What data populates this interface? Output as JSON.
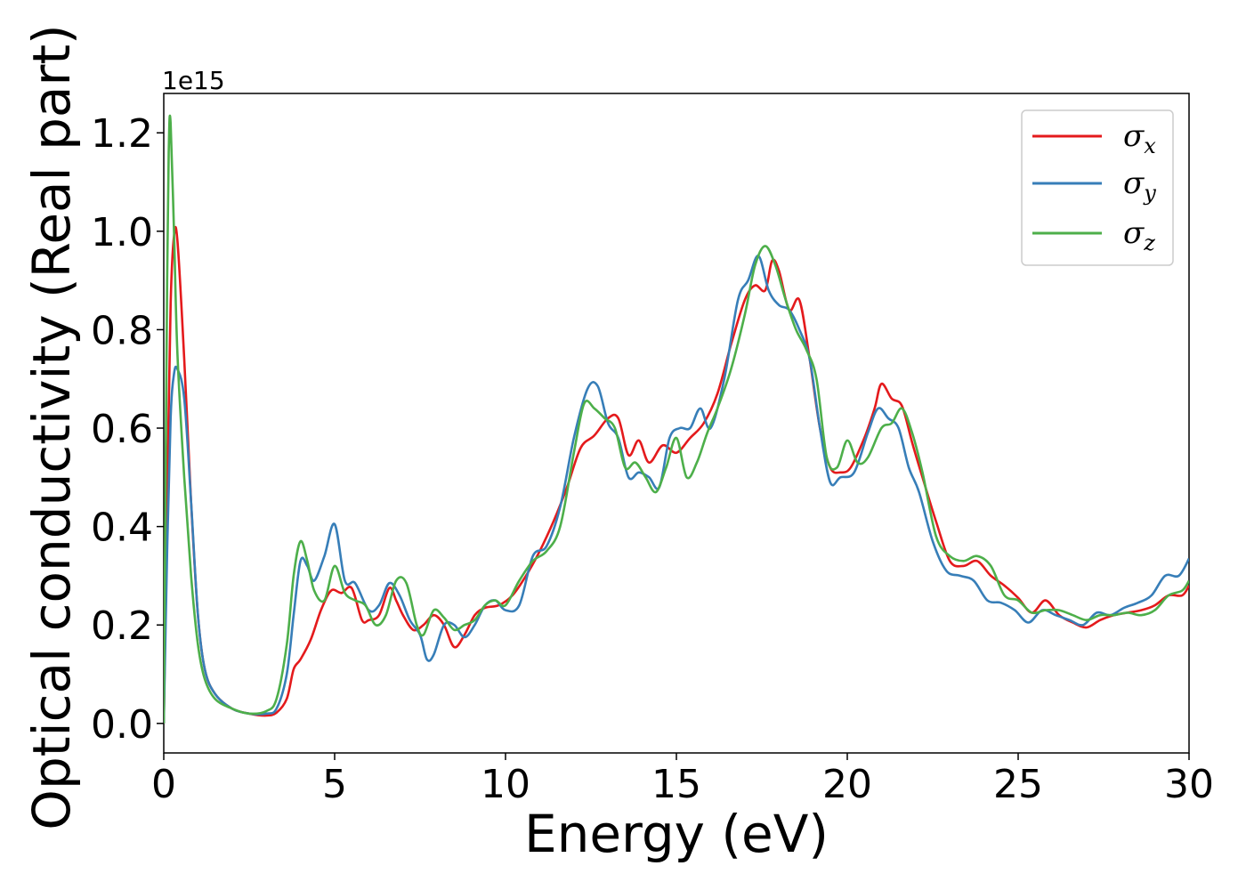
{
  "chart_data": {
    "type": "line",
    "title": "",
    "xlabel": "Energy (eV)",
    "ylabel": "Optical conductivity (Real part)",
    "y_offset_label": "1e15",
    "xlim": [
      0,
      30
    ],
    "ylim": [
      -0.06,
      1.28
    ],
    "xticks": [
      0,
      5,
      10,
      15,
      20,
      25,
      30
    ],
    "xtick_labels": [
      "0",
      "5",
      "10",
      "15",
      "20",
      "25",
      "30"
    ],
    "yticks": [
      0.0,
      0.2,
      0.4,
      0.6,
      0.8,
      1.0,
      1.2
    ],
    "ytick_labels": [
      "0.0",
      "0.2",
      "0.4",
      "0.6",
      "0.8",
      "1.0",
      "1.2"
    ],
    "grid": false,
    "legend_position": "top-right",
    "series": [
      {
        "name": "σx",
        "label_main": "σ",
        "label_sub": "x",
        "color": "#e41a1c",
        "x": [
          0,
          0.1,
          0.2,
          0.3,
          0.4,
          0.6,
          0.8,
          1.0,
          1.2,
          1.5,
          2.0,
          2.5,
          3.0,
          3.3,
          3.6,
          3.8,
          4.0,
          4.3,
          4.6,
          4.9,
          5.2,
          5.5,
          5.8,
          6.0,
          6.3,
          6.6,
          6.8,
          7.0,
          7.3,
          7.6,
          7.9,
          8.2,
          8.5,
          8.8,
          9.1,
          9.4,
          9.8,
          10.2,
          10.6,
          11.0,
          11.4,
          11.8,
          12.2,
          12.6,
          13.0,
          13.3,
          13.6,
          13.9,
          14.2,
          14.6,
          15.0,
          15.4,
          15.8,
          16.2,
          16.6,
          17.0,
          17.3,
          17.6,
          17.8,
          18.0,
          18.3,
          18.6,
          18.9,
          19.2,
          19.5,
          19.8,
          20.1,
          20.5,
          20.8,
          21.0,
          21.3,
          21.6,
          21.9,
          22.2,
          22.6,
          23.0,
          23.4,
          23.8,
          24.2,
          24.6,
          25.0,
          25.4,
          25.8,
          26.2,
          26.6,
          27.0,
          27.4,
          27.8,
          28.2,
          28.6,
          29.0,
          29.4,
          29.8,
          30.0
        ],
        "values": [
          0.0,
          0.45,
          0.85,
          0.99,
          0.98,
          0.74,
          0.45,
          0.22,
          0.11,
          0.06,
          0.03,
          0.02,
          0.016,
          0.022,
          0.05,
          0.11,
          0.13,
          0.17,
          0.23,
          0.27,
          0.265,
          0.275,
          0.21,
          0.21,
          0.22,
          0.275,
          0.25,
          0.22,
          0.19,
          0.2,
          0.22,
          0.2,
          0.155,
          0.18,
          0.22,
          0.235,
          0.24,
          0.26,
          0.3,
          0.35,
          0.41,
          0.48,
          0.56,
          0.585,
          0.62,
          0.62,
          0.545,
          0.575,
          0.53,
          0.565,
          0.55,
          0.58,
          0.61,
          0.67,
          0.77,
          0.86,
          0.89,
          0.88,
          0.94,
          0.92,
          0.84,
          0.86,
          0.74,
          0.6,
          0.52,
          0.51,
          0.52,
          0.58,
          0.64,
          0.69,
          0.66,
          0.645,
          0.57,
          0.5,
          0.41,
          0.33,
          0.32,
          0.33,
          0.3,
          0.28,
          0.255,
          0.225,
          0.25,
          0.22,
          0.205,
          0.195,
          0.21,
          0.22,
          0.225,
          0.23,
          0.24,
          0.26,
          0.26,
          0.28
        ]
      },
      {
        "name": "σy",
        "label_main": "σ",
        "label_sub": "y",
        "color": "#377eb8",
        "x": [
          0,
          0.1,
          0.2,
          0.3,
          0.4,
          0.6,
          0.8,
          1.0,
          1.2,
          1.5,
          2.0,
          2.5,
          3.0,
          3.3,
          3.6,
          3.8,
          4.0,
          4.2,
          4.4,
          4.7,
          5.0,
          5.3,
          5.6,
          6.0,
          6.3,
          6.6,
          6.9,
          7.2,
          7.5,
          7.7,
          7.9,
          8.2,
          8.5,
          8.8,
          9.1,
          9.4,
          9.7,
          10.0,
          10.4,
          10.8,
          11.2,
          11.6,
          12.0,
          12.4,
          12.7,
          13.0,
          13.3,
          13.6,
          13.9,
          14.2,
          14.5,
          14.8,
          15.1,
          15.4,
          15.7,
          16.0,
          16.4,
          16.8,
          17.1,
          17.4,
          17.7,
          18.0,
          18.3,
          18.6,
          18.9,
          19.2,
          19.5,
          19.8,
          20.2,
          20.6,
          20.9,
          21.2,
          21.5,
          21.8,
          22.1,
          22.5,
          22.9,
          23.3,
          23.7,
          24.1,
          24.5,
          24.9,
          25.3,
          25.7,
          26.1,
          26.5,
          26.9,
          27.3,
          27.7,
          28.1,
          28.5,
          28.9,
          29.3,
          29.7,
          30.0
        ],
        "values": [
          0.0,
          0.35,
          0.62,
          0.71,
          0.72,
          0.66,
          0.45,
          0.22,
          0.11,
          0.06,
          0.03,
          0.02,
          0.02,
          0.03,
          0.1,
          0.22,
          0.33,
          0.32,
          0.29,
          0.34,
          0.405,
          0.29,
          0.285,
          0.23,
          0.24,
          0.285,
          0.26,
          0.21,
          0.18,
          0.13,
          0.14,
          0.2,
          0.2,
          0.175,
          0.2,
          0.24,
          0.25,
          0.23,
          0.24,
          0.34,
          0.36,
          0.44,
          0.58,
          0.68,
          0.685,
          0.61,
          0.58,
          0.5,
          0.51,
          0.5,
          0.48,
          0.58,
          0.6,
          0.6,
          0.64,
          0.6,
          0.7,
          0.86,
          0.9,
          0.95,
          0.88,
          0.85,
          0.84,
          0.8,
          0.74,
          0.6,
          0.49,
          0.5,
          0.51,
          0.59,
          0.64,
          0.62,
          0.6,
          0.52,
          0.47,
          0.37,
          0.31,
          0.3,
          0.29,
          0.25,
          0.245,
          0.23,
          0.205,
          0.23,
          0.22,
          0.21,
          0.2,
          0.225,
          0.22,
          0.235,
          0.245,
          0.26,
          0.3,
          0.3,
          0.335
        ]
      },
      {
        "name": "σz",
        "label_main": "σ",
        "label_sub": "z",
        "color": "#4daf4a",
        "x": [
          0,
          0.1,
          0.15,
          0.2,
          0.3,
          0.4,
          0.6,
          0.8,
          1.0,
          1.2,
          1.5,
          2.0,
          2.5,
          3.0,
          3.3,
          3.6,
          3.8,
          4.0,
          4.2,
          4.4,
          4.7,
          5.0,
          5.3,
          5.6,
          5.9,
          6.2,
          6.5,
          6.8,
          7.1,
          7.4,
          7.6,
          7.9,
          8.2,
          8.5,
          8.8,
          9.1,
          9.4,
          9.7,
          10.0,
          10.4,
          10.8,
          11.2,
          11.6,
          12.0,
          12.3,
          12.6,
          12.9,
          13.2,
          13.5,
          13.8,
          14.1,
          14.4,
          14.7,
          15.0,
          15.3,
          15.6,
          15.9,
          16.2,
          16.6,
          17.0,
          17.3,
          17.6,
          17.9,
          18.2,
          18.5,
          18.8,
          19.1,
          19.4,
          19.7,
          20.0,
          20.3,
          20.6,
          21.0,
          21.3,
          21.6,
          21.9,
          22.2,
          22.6,
          23.0,
          23.4,
          23.8,
          24.2,
          24.6,
          25.0,
          25.4,
          25.8,
          26.2,
          26.6,
          27.0,
          27.4,
          27.8,
          28.2,
          28.6,
          29.0,
          29.4,
          29.8,
          30.0
        ],
        "values": [
          0.0,
          0.9,
          1.18,
          1.22,
          1.0,
          0.75,
          0.5,
          0.3,
          0.16,
          0.09,
          0.05,
          0.03,
          0.02,
          0.025,
          0.05,
          0.16,
          0.3,
          0.37,
          0.33,
          0.27,
          0.25,
          0.32,
          0.265,
          0.25,
          0.24,
          0.2,
          0.22,
          0.29,
          0.285,
          0.2,
          0.18,
          0.23,
          0.215,
          0.19,
          0.2,
          0.21,
          0.24,
          0.25,
          0.24,
          0.29,
          0.33,
          0.35,
          0.4,
          0.55,
          0.65,
          0.64,
          0.62,
          0.6,
          0.52,
          0.53,
          0.5,
          0.47,
          0.52,
          0.58,
          0.5,
          0.53,
          0.59,
          0.64,
          0.72,
          0.83,
          0.93,
          0.97,
          0.93,
          0.86,
          0.8,
          0.76,
          0.7,
          0.54,
          0.52,
          0.575,
          0.53,
          0.54,
          0.6,
          0.61,
          0.64,
          0.59,
          0.51,
          0.38,
          0.34,
          0.33,
          0.34,
          0.32,
          0.26,
          0.25,
          0.225,
          0.23,
          0.23,
          0.22,
          0.21,
          0.22,
          0.22,
          0.225,
          0.22,
          0.23,
          0.26,
          0.27,
          0.29
        ]
      }
    ]
  }
}
